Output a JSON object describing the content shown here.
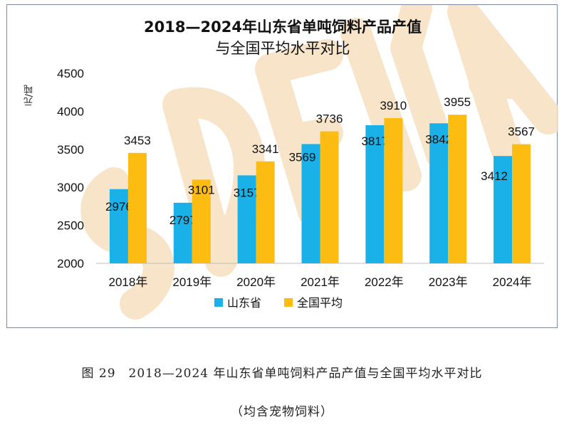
{
  "chart_data": {
    "type": "bar",
    "title_line1": "2018—2024年山东省单吨饲料产品产值",
    "title_line2": "与全国平均水平对比",
    "ylabel": "元/吨",
    "ylim": [
      2000,
      4500
    ],
    "yticks": [
      "2000",
      "2500",
      "3000",
      "3500",
      "4000",
      "4500"
    ],
    "categories": [
      "2018年",
      "2019年",
      "2020年",
      "2021年",
      "2022年",
      "2023年",
      "2024年"
    ],
    "series": [
      {
        "name": "山东省",
        "color": "#1ab0e8",
        "values": [
          2976,
          2797,
          3157,
          3569,
          3817,
          3842,
          3412
        ]
      },
      {
        "name": "全国平均",
        "color": "#fcbc12",
        "values": [
          3453,
          3101,
          3341,
          3736,
          3910,
          3955,
          3567
        ]
      }
    ],
    "watermark": "SDFIA"
  },
  "caption": {
    "line1": "图 29　2018—2024 年山东省单吨饲料产品产值与全国平均水平对比",
    "line2": "（均含宠物饲料）"
  }
}
